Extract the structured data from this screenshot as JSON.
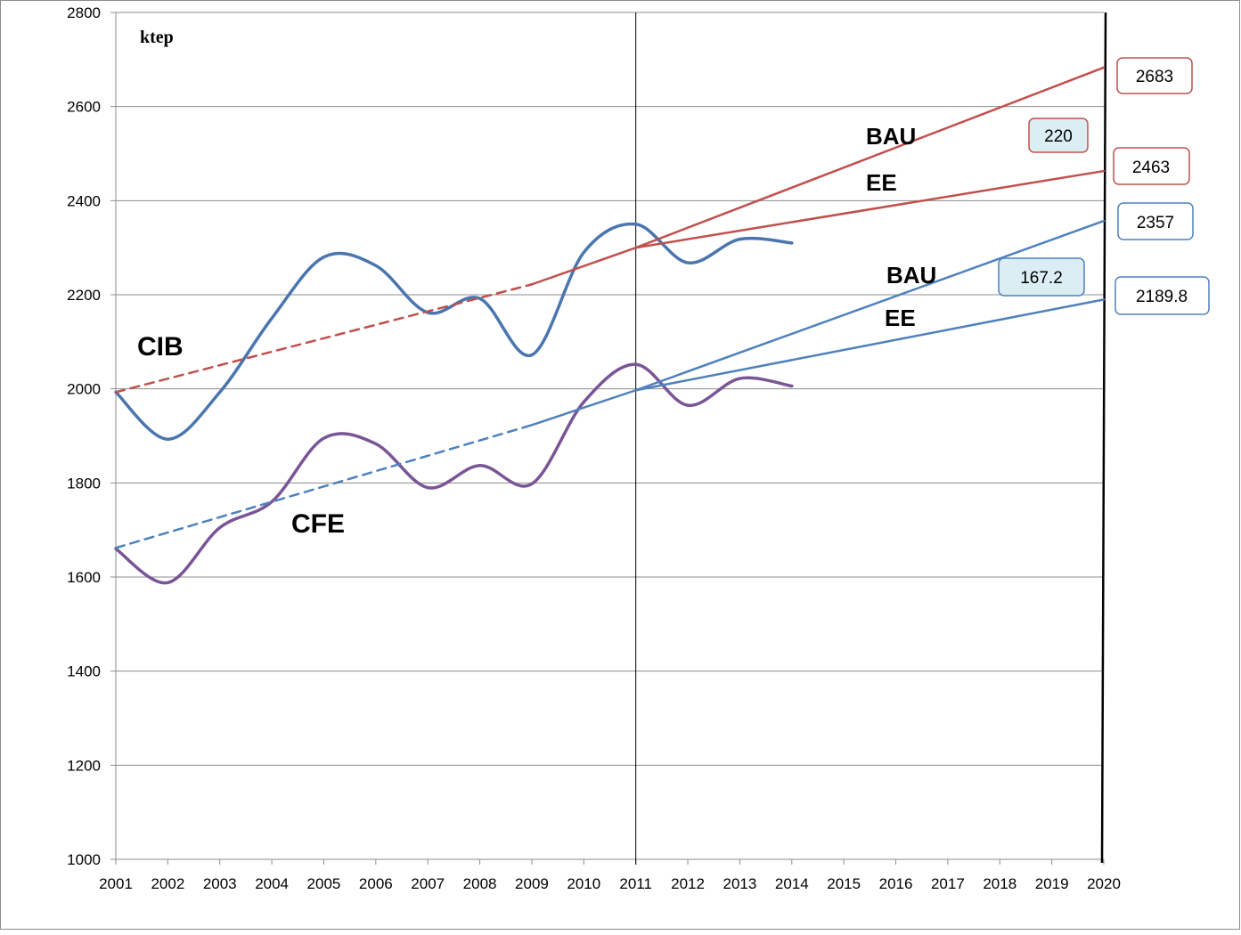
{
  "chart_data": {
    "type": "line",
    "unit_label": "ktep",
    "xlim": [
      2001,
      2020
    ],
    "ylim": [
      1000,
      2800
    ],
    "x_ticks": [
      "2001",
      "2002",
      "2003",
      "2004",
      "2005",
      "2006",
      "2007",
      "2008",
      "2009",
      "2010",
      "2011",
      "2012",
      "2013",
      "2014",
      "2015",
      "2016",
      "2017",
      "2018",
      "2019",
      "2020"
    ],
    "y_ticks": [
      "1000",
      "1200",
      "1400",
      "1600",
      "1800",
      "2000",
      "2200",
      "2400",
      "2600",
      "2800"
    ],
    "grid": "horizontal",
    "vertical_marker_years": [
      2011,
      2020
    ],
    "series": [
      {
        "name": "CIB",
        "color": "#4a75ae",
        "style": "solid-smooth",
        "x": [
          2001,
          2002,
          2003,
          2004,
          2005,
          2006,
          2007,
          2008,
          2009,
          2010,
          2011,
          2012,
          2013,
          2014
        ],
        "values": [
          1993,
          1893,
          1993,
          2150,
          2280,
          2262,
          2162,
          2192,
          2072,
          2290,
          2350,
          2268,
          2318,
          2310
        ]
      },
      {
        "name": "CFE",
        "color": "#7a5596",
        "style": "solid-smooth",
        "x": [
          2001,
          2002,
          2003,
          2004,
          2005,
          2006,
          2007,
          2008,
          2009,
          2010,
          2011,
          2012,
          2013,
          2014
        ],
        "values": [
          1660,
          1588,
          1705,
          1760,
          1895,
          1883,
          1790,
          1837,
          1798,
          1972,
          2052,
          1965,
          2022,
          2006
        ]
      },
      {
        "name": "",
        "color": "#c0504d",
        "style": "dashed",
        "x": [
          2001,
          2009
        ],
        "values": [
          1993,
          2222
        ]
      },
      {
        "name": "",
        "color": "#4f81bd",
        "style": "dashed",
        "x": [
          2001,
          2009
        ],
        "values": [
          1662,
          1923
        ]
      },
      {
        "name": "",
        "color": "#c0504d",
        "style": "solid",
        "x": [
          2009,
          2011,
          2020
        ],
        "values": [
          2222,
          2300,
          2683
        ]
      },
      {
        "name": "",
        "color": "#c0504d",
        "style": "solid",
        "x": [
          2011,
          2020
        ],
        "values": [
          2300,
          2463
        ]
      },
      {
        "name": "",
        "color": "#4f81bd",
        "style": "solid",
        "x": [
          2009,
          2011,
          2020
        ],
        "values": [
          1923,
          1997,
          2357
        ]
      },
      {
        "name": "",
        "color": "#4f81bd",
        "style": "solid",
        "x": [
          2011,
          2020
        ],
        "values": [
          1997,
          2189.8
        ]
      }
    ],
    "annotations": {
      "cib": "CIB",
      "cfe": "CFE",
      "bau_red": "BAU",
      "ee_red": "EE",
      "bau_blue": "BAU",
      "ee_blue": "EE",
      "box_2683": "2683",
      "box_220": "220",
      "box_2463": "2463",
      "box_2357": "2357",
      "box_1672": "167.2",
      "box_21898": "2189.8"
    },
    "colors": {
      "red": "#c0504d",
      "blue_trend": "#4f81bd",
      "cib": "#4a75ae",
      "cfe": "#7a5596",
      "box_fill_light": "#dbeef3"
    }
  }
}
